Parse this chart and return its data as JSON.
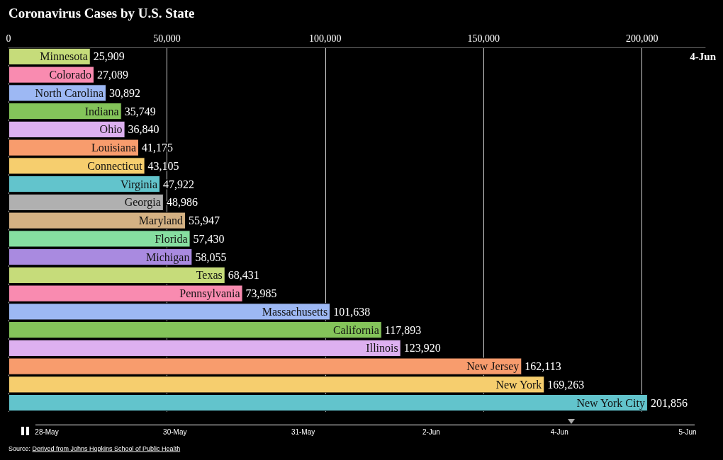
{
  "chart_data": {
    "type": "bar",
    "orientation": "horizontal",
    "title": "Coronavirus Cases by U.S. State",
    "categories": [
      "Minnesota",
      "Colorado",
      "North Carolina",
      "Indiana",
      "Ohio",
      "Louisiana",
      "Connecticut",
      "Virginia",
      "Georgia",
      "Maryland",
      "Florida",
      "Michigan",
      "Texas",
      "Pennsylvania",
      "Massachusetts",
      "California",
      "Illinois",
      "New Jersey",
      "New York",
      "New York City"
    ],
    "values": [
      25909,
      27089,
      30892,
      35749,
      36840,
      41175,
      43105,
      47922,
      48986,
      55947,
      57430,
      58055,
      68431,
      73985,
      101638,
      117893,
      123920,
      162113,
      169263,
      201856
    ],
    "colors": [
      "#c6dc7a",
      "#f98bb0",
      "#9db8f4",
      "#84c45a",
      "#ddb0f0",
      "#f89c6d",
      "#f6ce6e",
      "#62c4cc",
      "#b0b0b0",
      "#d4b183",
      "#86dea0",
      "#a98ae0",
      "#c6dc7a",
      "#f98bb0",
      "#9db8f4",
      "#84c45a",
      "#ddb0f0",
      "#f89c6d",
      "#f6ce6e",
      "#62c4cc"
    ],
    "xlim": [
      0,
      220000
    ],
    "xticks": [
      0,
      {
        "value": 50000,
        "label": "50,000"
      },
      {
        "value": 100000,
        "label": "100,000"
      },
      {
        "value": 150000,
        "label": "150,000"
      },
      {
        "value": 200000,
        "label": "200,000"
      }
    ],
    "value_labels": [
      "25,909",
      "27,089",
      "30,892",
      "35,749",
      "36,840",
      "41,175",
      "43,105",
      "47,922",
      "48,986",
      "55,947",
      "57,430",
      "58,055",
      "68,431",
      "73,985",
      "101,638",
      "117,893",
      "123,920",
      "162,113",
      "169,263",
      "201,856"
    ],
    "grid": "x",
    "annotations": [
      "4-Jun",
      "28-May",
      "30-May",
      "31-May",
      "2-Jun",
      "4-Jun",
      "5-Jun",
      "Source: Derived from Johns Hopkins School of Public Health"
    ]
  }
}
